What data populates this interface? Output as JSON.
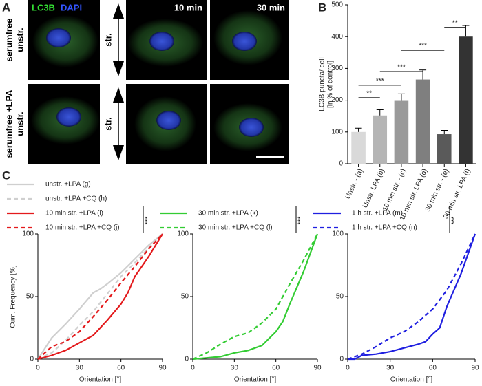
{
  "panels": {
    "a": {
      "label": "A",
      "channel_1": "LC3B",
      "channel_2": "DAPI",
      "time_1": "10 min",
      "time_2": "30 min",
      "row_1": [
        "serumfree",
        "unstr."
      ],
      "row_2": [
        "serumfree +LPA",
        "unstr."
      ],
      "stretch_1": "str.",
      "stretch_2": "str."
    },
    "b_label": "B",
    "c_label": "C"
  },
  "chart_data": [
    {
      "type": "bar",
      "ylabel": [
        "LC3B puncta/ cell",
        "[in % of control]"
      ],
      "categories": [
        "Unstr. - (a)",
        "Unstr. LPA (b)",
        "10 min str. - (c)",
        "10 min str. LPA (d)",
        "30 min str. - (e)",
        "30 min str. LPA (f)"
      ],
      "values": [
        100,
        152,
        198,
        265,
        93,
        400
      ],
      "errors": [
        12,
        18,
        22,
        30,
        12,
        35
      ],
      "colors": [
        "#d9d9d9",
        "#b5b5b5",
        "#9a9a9a",
        "#7f7f7f",
        "#5a5a5a",
        "#333333"
      ],
      "ylim": [
        0,
        500
      ],
      "yticks": [
        0,
        100,
        200,
        300,
        400,
        500
      ],
      "significance": [
        {
          "from": 0,
          "to": 1,
          "y": 208,
          "label": "**"
        },
        {
          "from": 0,
          "to": 2,
          "y": 247,
          "label": "***"
        },
        {
          "from": 1,
          "to": 3,
          "y": 290,
          "label": "***"
        },
        {
          "from": 2,
          "to": 4,
          "y": 357,
          "label": "***"
        },
        {
          "from": 4,
          "to": 5,
          "y": 429,
          "label": "**"
        }
      ]
    },
    {
      "type": "line",
      "xlabel": "Orientation [°]",
      "ylabel": "Cum. Frequency [%]",
      "xlim": [
        0,
        90
      ],
      "xticks": [
        0,
        30,
        60,
        90
      ],
      "ylim": [
        0,
        100
      ],
      "yticks": [
        0,
        50,
        100
      ],
      "significance": "***",
      "series": [
        {
          "name": "unstr. +LPA (g)",
          "color": "#cfcfcf",
          "dashed": false,
          "x": [
            0,
            10,
            20,
            30,
            40,
            45,
            50,
            60,
            70,
            80,
            90
          ],
          "values": [
            0,
            17,
            28,
            40,
            53,
            56,
            60,
            69,
            80,
            91,
            100
          ]
        },
        {
          "name": "unstr. +LPA +CQ (h)",
          "color": "#cfcfcf",
          "dashed": true,
          "x": [
            0,
            10,
            20,
            30,
            40,
            50,
            60,
            70,
            80,
            90
          ],
          "values": [
            0,
            5,
            15,
            27,
            38,
            52,
            66,
            77,
            89,
            100
          ]
        },
        {
          "name": "10 min str. +LPA (i)",
          "color": "#e31a1c",
          "dashed": false,
          "x": [
            0,
            10,
            20,
            30,
            40,
            45,
            50,
            60,
            65,
            70,
            80,
            90
          ],
          "values": [
            0,
            3,
            7,
            13,
            19,
            25,
            31,
            44,
            53,
            66,
            82,
            100
          ]
        },
        {
          "name": "10 min str. +LPA +CQ (j)",
          "color": "#e31a1c",
          "dashed": true,
          "x": [
            0,
            10,
            20,
            30,
            40,
            50,
            60,
            70,
            80,
            90
          ],
          "values": [
            0,
            10,
            14,
            22,
            34,
            47,
            61,
            74,
            88,
            100
          ]
        }
      ]
    },
    {
      "type": "line",
      "xlabel": "Orientation [°]",
      "xlim": [
        0,
        90
      ],
      "xticks": [
        0,
        30,
        60,
        90
      ],
      "ylim": [
        0,
        100
      ],
      "yticks": [
        0,
        50,
        100
      ],
      "significance": "***",
      "series": [
        {
          "name": "30 min str. +LPA (k)",
          "color": "#33cc33",
          "dashed": false,
          "x": [
            0,
            10,
            20,
            30,
            40,
            50,
            60,
            65,
            70,
            80,
            90
          ],
          "values": [
            0,
            1,
            2,
            5,
            7,
            11,
            22,
            30,
            44,
            70,
            100
          ]
        },
        {
          "name": "30 min str. +LPA +CQ (l)",
          "color": "#33cc33",
          "dashed": true,
          "x": [
            0,
            10,
            20,
            30,
            40,
            50,
            60,
            70,
            80,
            90
          ],
          "values": [
            0,
            5,
            12,
            18,
            21,
            29,
            40,
            60,
            79,
            100
          ]
        }
      ]
    },
    {
      "type": "line",
      "xlabel": "Orientation [°]",
      "xlim": [
        0,
        90
      ],
      "xticks": [
        0,
        30,
        60,
        90
      ],
      "ylim": [
        0,
        100
      ],
      "yticks": [
        0,
        50,
        100
      ],
      "significance": "***",
      "series": [
        {
          "name": "1 h str. +LPA (m)",
          "color": "#1f1fe0",
          "dashed": false,
          "x": [
            0,
            5,
            10,
            20,
            30,
            40,
            50,
            55,
            60,
            65,
            70,
            80,
            90
          ],
          "values": [
            0,
            0,
            3,
            4,
            6,
            9,
            12,
            14,
            20,
            25,
            42,
            68,
            100
          ]
        },
        {
          "name": "1 h str. +LPA +CQ (n)",
          "color": "#1f1fe0",
          "dashed": true,
          "x": [
            0,
            10,
            20,
            30,
            40,
            50,
            60,
            70,
            80,
            90
          ],
          "values": [
            0,
            4,
            10,
            17,
            22,
            30,
            40,
            55,
            76,
            100
          ]
        }
      ]
    }
  ]
}
